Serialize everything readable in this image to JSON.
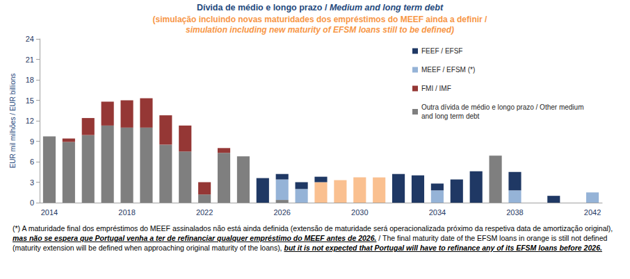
{
  "chart_data": {
    "type": "bar",
    "title": "Dívida de médio e longo prazo / Medium and long term debt",
    "subtitle": "(simulação incluindo novas maturidades dos empréstimos do MEEF ainda a definir / simulation including new maturity of EFSM loans still to be defined)",
    "y_label": "EUR mil milhões / EUR billions",
    "footnote": [
      "(*) A maturidade  final dos empréstimos do MEEF  assinalados não está ainda definida (extensão de maturidade será operacionalizada próximo da respetiva data de amortização original), ",
      "mas não se espera que Portugal venha a ter de refinanciar qualquer empréstimo do MEEF antes de 2026.",
      " / The final maturity date of the EFSM loans in orange is still not defined (maturity extension will be defined when approaching original maturity of the loans), ",
      "but it is not expected that Portugal will have to refinance any of its EFSM loans before 2026."
    ],
    "categories": [
      "2014",
      null,
      null,
      null,
      "2018",
      null,
      null,
      null,
      "2022",
      null,
      null,
      null,
      "2026",
      null,
      null,
      null,
      "2030",
      null,
      null,
      null,
      "2034",
      null,
      null,
      null,
      "2038",
      null,
      null,
      null,
      "2042"
    ],
    "series": [
      {
        "name": "FEEF / EFSF",
        "color": "#1f3864",
        "values": [
          null,
          null,
          null,
          null,
          null,
          null,
          null,
          null,
          null,
          null,
          null,
          3.6,
          0.8,
          1.0,
          0.8,
          null,
          null,
          null,
          4.2,
          4.0,
          1.0,
          3.4,
          4.6,
          null,
          2.7,
          null,
          1.0,
          null,
          null
        ]
      },
      {
        "name": "MEEF / EFSM (*)",
        "color": "#95b3d7",
        "values": [
          null,
          null,
          null,
          null,
          null,
          null,
          null,
          null,
          null,
          null,
          null,
          null,
          3.0,
          2.0,
          3.0,
          3.3,
          3.7,
          3.7,
          null,
          null,
          1.8,
          null,
          null,
          null,
          1.8,
          null,
          null,
          null,
          1.5
        ],
        "colors": [
          "#95b3d7",
          "#95b3d7",
          "#95b3d7",
          "#95b3d7",
          "#95b3d7",
          "#95b3d7",
          "#95b3d7",
          "#95b3d7",
          "#95b3d7",
          "#95b3d7",
          "#95b3d7",
          "#95b3d7",
          "#95b3d7",
          "#95b3d7",
          "#fac090",
          "#fac090",
          "#fac090",
          "#fac090",
          "#95b3d7",
          "#95b3d7",
          "#95b3d7",
          "#95b3d7",
          "#95b3d7",
          "#95b3d7",
          "#95b3d7",
          "#95b3d7",
          "#95b3d7",
          "#95b3d7",
          "#95b3d7"
        ]
      },
      {
        "name": "FMI / IMF",
        "color": "#953735",
        "values": [
          null,
          0.5,
          2.5,
          3.5,
          4.0,
          4.3,
          4.3,
          3.8,
          1.8,
          0.7,
          null,
          null,
          null,
          null,
          null,
          null,
          null,
          null,
          null,
          null,
          null,
          null,
          null,
          null,
          null,
          null,
          null,
          null,
          null
        ]
      },
      {
        "name": "Outra dívida de médio e longo prazo / Other medium and long term debt",
        "color": "#7f7f7f",
        "values": [
          9.7,
          8.9,
          9.9,
          11.3,
          11.0,
          11.0,
          8.5,
          7.5,
          1.2,
          7.3,
          6.8,
          null,
          0.4,
          null,
          null,
          null,
          null,
          null,
          null,
          null,
          null,
          null,
          null,
          6.9,
          null,
          null,
          null,
          null,
          null
        ]
      }
    ],
    "ylim": [
      0,
      24
    ],
    "yticks": [
      0,
      3,
      6,
      9,
      12,
      15,
      18,
      21,
      24
    ],
    "stacked": true,
    "grid": false,
    "legend": "right"
  }
}
